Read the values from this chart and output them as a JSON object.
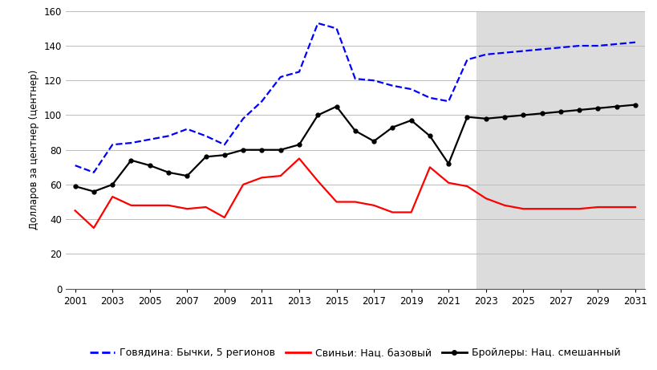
{
  "years": [
    2001,
    2002,
    2003,
    2004,
    2005,
    2006,
    2007,
    2008,
    2009,
    2010,
    2011,
    2012,
    2013,
    2014,
    2015,
    2016,
    2017,
    2018,
    2019,
    2020,
    2021,
    2022,
    2023,
    2024,
    2025,
    2026,
    2027,
    2028,
    2029,
    2030,
    2031
  ],
  "beef": [
    71,
    67,
    83,
    84,
    86,
    88,
    92,
    88,
    83,
    98,
    108,
    122,
    125,
    153,
    150,
    121,
    120,
    117,
    115,
    110,
    108,
    132,
    135,
    136,
    137,
    138,
    139,
    140,
    140,
    141,
    142
  ],
  "pork": [
    45,
    35,
    53,
    48,
    48,
    48,
    46,
    47,
    41,
    60,
    64,
    65,
    75,
    62,
    50,
    50,
    48,
    44,
    44,
    70,
    61,
    59,
    52,
    48,
    46,
    46,
    46,
    46,
    47,
    47,
    47
  ],
  "broilers": [
    59,
    56,
    60,
    74,
    71,
    67,
    65,
    76,
    77,
    80,
    80,
    80,
    83,
    100,
    105,
    91,
    85,
    93,
    97,
    88,
    72,
    99,
    98,
    99,
    100,
    101,
    102,
    103,
    104,
    105,
    106
  ],
  "forecast_start_year": 2022.5,
  "beef_color": "#0000FF",
  "pork_color": "#FF0000",
  "broilers_color": "#000000",
  "background_color": "#FFFFFF",
  "forecast_bg_color": "#DCDCDC",
  "ylabel": "Долларов за центнер (центнер)",
  "ylim": [
    0,
    160
  ],
  "yticks": [
    0,
    20,
    40,
    60,
    80,
    100,
    120,
    140,
    160
  ],
  "legend_beef": "Говядина: Бычки, 5 регионов",
  "legend_pork": "Свиньи: Нац. базовый",
  "legend_broilers": "Бройлеры: Нац. смешанный",
  "xticks": [
    2001,
    2003,
    2005,
    2007,
    2009,
    2011,
    2013,
    2015,
    2017,
    2019,
    2021,
    2023,
    2025,
    2027,
    2029,
    2031
  ],
  "xlim_left": 2000.5,
  "xlim_right": 2031.5
}
